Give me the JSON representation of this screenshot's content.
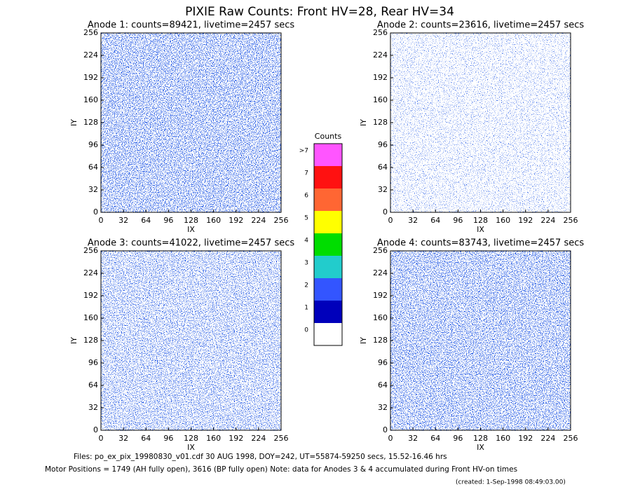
{
  "title": "PIXIE Raw Counts:  Front HV=28, Rear HV=34",
  "chart_data": [
    {
      "type": "heatmap",
      "title": "Anode 1: counts=89421, livetime=2457 secs",
      "xlabel": "IX",
      "ylabel": "IY",
      "xlim": [
        0,
        256
      ],
      "ylim": [
        0,
        256
      ],
      "xticks": [
        0,
        32,
        64,
        96,
        128,
        160,
        192,
        224,
        256
      ],
      "yticks": [
        0,
        32,
        64,
        96,
        128,
        160,
        192,
        224,
        256
      ]
    },
    {
      "type": "heatmap",
      "title": "Anode 2: counts=23616, livetime=2457 secs",
      "xlabel": "IX",
      "ylabel": "IY",
      "xlim": [
        0,
        256
      ],
      "ylim": [
        0,
        256
      ],
      "xticks": [
        0,
        32,
        64,
        96,
        128,
        160,
        192,
        224,
        256
      ],
      "yticks": [
        0,
        32,
        64,
        96,
        128,
        160,
        192,
        224,
        256
      ]
    },
    {
      "type": "heatmap",
      "title": "Anode 3: counts=41022, livetime=2457 secs",
      "xlabel": "IX",
      "ylabel": "IY",
      "xlim": [
        0,
        256
      ],
      "ylim": [
        0,
        256
      ],
      "xticks": [
        0,
        32,
        64,
        96,
        128,
        160,
        192,
        224,
        256
      ],
      "yticks": [
        0,
        32,
        64,
        96,
        128,
        160,
        192,
        224,
        256
      ]
    },
    {
      "type": "heatmap",
      "title": "Anode 4: counts=83743, livetime=2457 secs",
      "xlabel": "IX",
      "ylabel": "IY",
      "xlim": [
        0,
        256
      ],
      "ylim": [
        0,
        256
      ],
      "xticks": [
        0,
        32,
        64,
        96,
        128,
        160,
        192,
        224,
        256
      ],
      "yticks": [
        0,
        32,
        64,
        96,
        128,
        160,
        192,
        224,
        256
      ]
    }
  ],
  "colorbar": {
    "title": "Counts",
    "labels": [
      0,
      1,
      2,
      3,
      4,
      5,
      6,
      7,
      ">7"
    ],
    "colors": [
      "#ffffff",
      "#0000bb",
      "#3355ff",
      "#22cccc",
      "#00dd00",
      "#ffff00",
      "#ff6633",
      "#ff1111",
      "#ff55ff"
    ]
  },
  "footer": {
    "files": "Files: po_ex_pix_19980830_v01.cdf    30 AUG 1998, DOY=242, UT=55874-59250 secs, 15.52-16.46 hrs",
    "motor": "Motor Positions = 1749 (AH fully open), 3616 (BP fully open)    Note: data for Anodes 3 & 4 accumulated during Front HV-on times",
    "created": "(created:  1-Sep-1998 08:49:03.00)"
  }
}
